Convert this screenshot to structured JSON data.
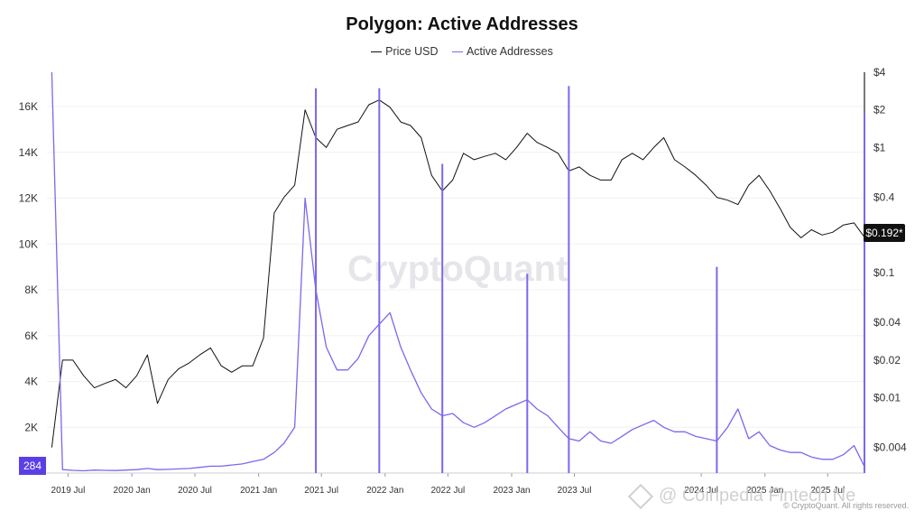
{
  "chart_data": {
    "type": "line",
    "title": "Polygon: Active Addresses",
    "legend": [
      "Price USD",
      "Active Addresses"
    ],
    "legend_position": "top-center",
    "colors": {
      "price": "#111111",
      "active": "#7b68ee",
      "badge_active": "#5b3fe6",
      "badge_price": "#111111"
    },
    "x_ticks": [
      "2019 Jul",
      "2020 Jan",
      "2020 Jul",
      "2021 Jan",
      "2021 Jul",
      "2022 Jan",
      "2022 Jul",
      "2023 Jan",
      "2023 Jul",
      "2024 Jul",
      "2025 Jan",
      "2025 Jul"
    ],
    "left_axis": {
      "ticks": [
        "2K",
        "4K",
        "6K",
        "8K",
        "10K",
        "12K",
        "14K",
        "16K"
      ],
      "range": [
        0,
        17500
      ]
    },
    "right_axis": {
      "scale": "log",
      "ticks": [
        "$0.004",
        "$0.01",
        "$0.02",
        "$0.04",
        "$0.1",
        "$0.4",
        "$1",
        "$2",
        "$4"
      ],
      "range": [
        0.0025,
        4
      ]
    },
    "current_price_label": "$0.192*",
    "current_active_label": "284",
    "grid": true,
    "series": [
      {
        "name": "Price USD",
        "axis": "right",
        "x": [
          "2019-05",
          "2019-06",
          "2019-07",
          "2019-08",
          "2019-09",
          "2019-10",
          "2019-11",
          "2019-12",
          "2020-01",
          "2020-02",
          "2020-03",
          "2020-04",
          "2020-05",
          "2020-06",
          "2020-07",
          "2020-08",
          "2020-09",
          "2020-10",
          "2020-11",
          "2020-12",
          "2021-01",
          "2021-02",
          "2021-03",
          "2021-04",
          "2021-05",
          "2021-06",
          "2021-07",
          "2021-08",
          "2021-09",
          "2021-10",
          "2021-11",
          "2021-12",
          "2022-01",
          "2022-02",
          "2022-03",
          "2022-04",
          "2022-05",
          "2022-06",
          "2022-07",
          "2022-08",
          "2022-09",
          "2022-10",
          "2022-11",
          "2022-12",
          "2023-01",
          "2023-02",
          "2023-03",
          "2023-04",
          "2023-05",
          "2023-06",
          "2023-07",
          "2023-08",
          "2023-09",
          "2023-10",
          "2023-11",
          "2023-12",
          "2024-01",
          "2024-02",
          "2024-03",
          "2024-04",
          "2024-05",
          "2024-06",
          "2024-07",
          "2024-08",
          "2024-09",
          "2024-10",
          "2024-11",
          "2024-12",
          "2025-01",
          "2025-02",
          "2025-03",
          "2025-04",
          "2025-05",
          "2025-06",
          "2025-07",
          "2025-08",
          "2025-09",
          "2025-10"
        ],
        "values": [
          0.004,
          0.02,
          0.02,
          0.015,
          0.012,
          0.013,
          0.014,
          0.012,
          0.015,
          0.022,
          0.009,
          0.014,
          0.017,
          0.019,
          0.022,
          0.025,
          0.018,
          0.016,
          0.018,
          0.018,
          0.03,
          0.3,
          0.4,
          0.5,
          2.0,
          1.2,
          1.0,
          1.4,
          1.5,
          1.6,
          2.2,
          2.4,
          2.1,
          1.6,
          1.5,
          1.2,
          0.6,
          0.45,
          0.55,
          0.9,
          0.8,
          0.85,
          0.9,
          0.8,
          1.0,
          1.3,
          1.1,
          1.0,
          0.9,
          0.65,
          0.7,
          0.6,
          0.55,
          0.55,
          0.8,
          0.9,
          0.8,
          1.0,
          1.2,
          0.8,
          0.7,
          0.6,
          0.5,
          0.4,
          0.38,
          0.35,
          0.5,
          0.6,
          0.45,
          0.32,
          0.23,
          0.19,
          0.22,
          0.2,
          0.21,
          0.24,
          0.25,
          0.192
        ]
      },
      {
        "name": "Active Addresses",
        "axis": "left",
        "x": [
          "2019-05",
          "2019-06",
          "2019-07",
          "2019-08",
          "2019-09",
          "2019-10",
          "2019-11",
          "2019-12",
          "2020-01",
          "2020-02",
          "2020-03",
          "2020-04",
          "2020-05",
          "2020-06",
          "2020-07",
          "2020-08",
          "2020-09",
          "2020-10",
          "2020-11",
          "2020-12",
          "2021-01",
          "2021-02",
          "2021-03",
          "2021-04",
          "2021-05",
          "2021-06",
          "2021-07",
          "2021-08",
          "2021-09",
          "2021-10",
          "2021-11",
          "2021-12",
          "2022-01",
          "2022-02",
          "2022-03",
          "2022-04",
          "2022-05",
          "2022-06",
          "2022-07",
          "2022-08",
          "2022-09",
          "2022-10",
          "2022-11",
          "2022-12",
          "2023-01",
          "2023-02",
          "2023-03",
          "2023-04",
          "2023-05",
          "2023-06",
          "2023-07",
          "2023-08",
          "2023-09",
          "2023-10",
          "2023-11",
          "2023-12",
          "2024-01",
          "2024-02",
          "2024-03",
          "2024-04",
          "2024-05",
          "2024-06",
          "2024-07",
          "2024-08",
          "2024-09",
          "2024-10",
          "2024-11",
          "2024-12",
          "2025-01",
          "2025-02",
          "2025-03",
          "2025-04",
          "2025-05",
          "2025-06",
          "2025-07",
          "2025-08",
          "2025-09",
          "2025-10"
        ],
        "values": [
          17500,
          150,
          120,
          100,
          130,
          120,
          110,
          130,
          150,
          200,
          150,
          160,
          180,
          200,
          250,
          300,
          300,
          350,
          400,
          500,
          600,
          900,
          1300,
          2000,
          12000,
          8000,
          5500,
          4500,
          4500,
          5000,
          6000,
          6500,
          7000,
          5500,
          4500,
          3500,
          2800,
          2500,
          2600,
          2200,
          2000,
          2200,
          2500,
          2800,
          3000,
          3200,
          2800,
          2500,
          2000,
          1500,
          1400,
          1800,
          1400,
          1300,
          1600,
          1900,
          2100,
          2300,
          2000,
          1800,
          1800,
          1600,
          1500,
          1400,
          2000,
          2800,
          1500,
          1800,
          1200,
          1000,
          900,
          900,
          700,
          600,
          600,
          800,
          1200,
          284
        ]
      }
    ],
    "spikes": [
      {
        "x": "2021-06",
        "value": 16800,
        "axis": "left"
      },
      {
        "x": "2021-12",
        "value": 16800,
        "axis": "left"
      },
      {
        "x": "2022-06",
        "value": 13500,
        "axis": "left"
      },
      {
        "x": "2023-06",
        "value": 16900,
        "axis": "left"
      },
      {
        "x": "2025-10",
        "value": 15700,
        "axis": "left"
      },
      {
        "x": "2024-08",
        "value": 9000,
        "axis": "left"
      },
      {
        "x": "2023-02",
        "value": 8700,
        "axis": "left"
      }
    ]
  },
  "watermark": "CryptoQuant",
  "footer_credit": "© CryptoQuant. All rights reserved.",
  "overlay_text": "@ Coinpedia Fintech Ne"
}
